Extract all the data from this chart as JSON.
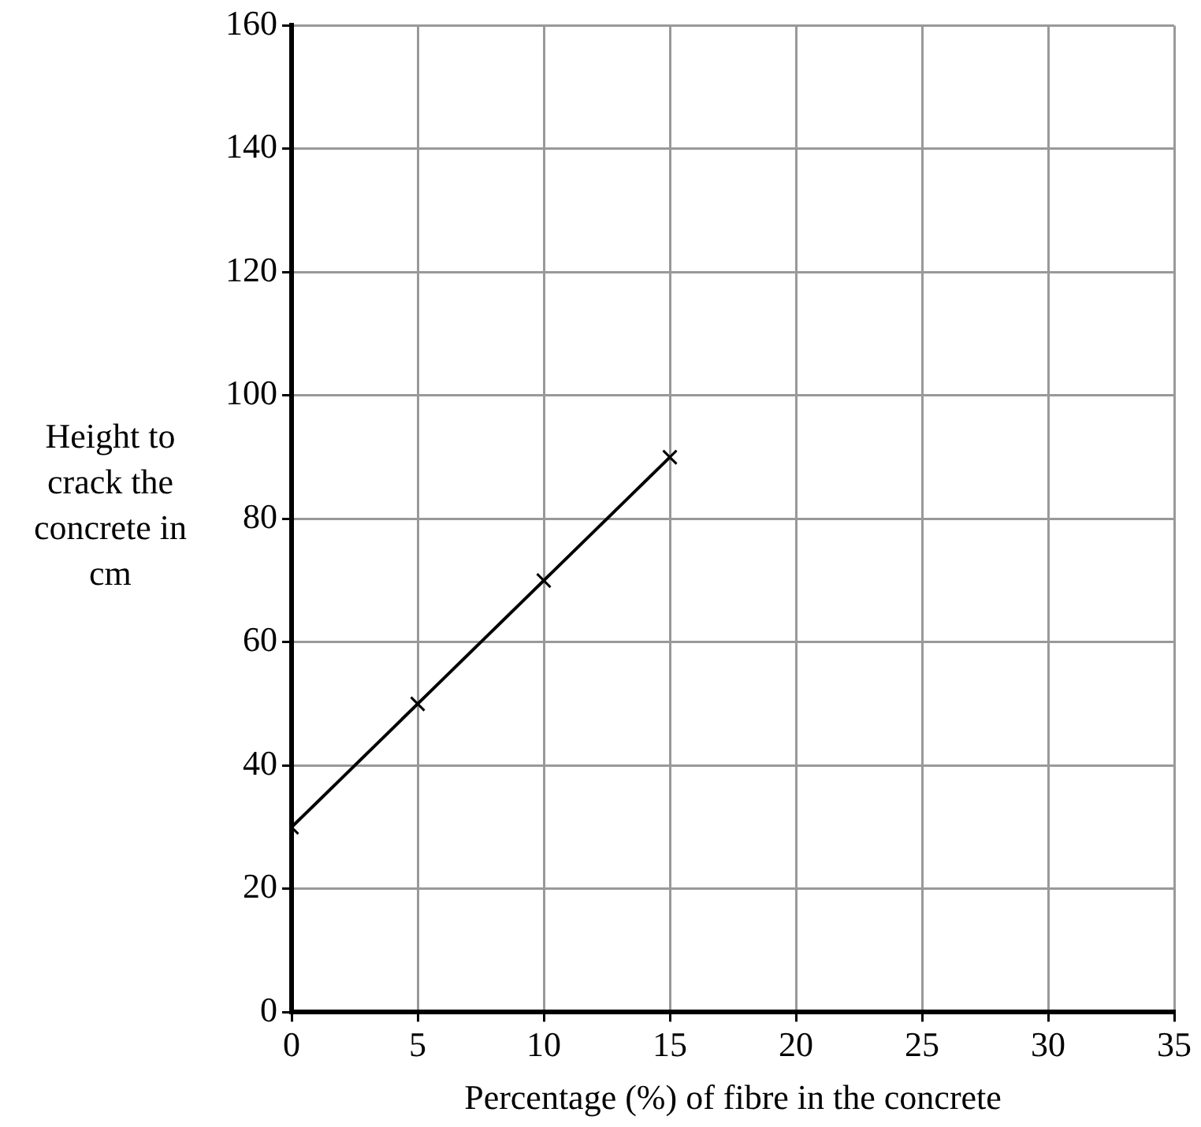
{
  "chart_data": {
    "type": "line",
    "xlabel": "Percentage (%) of fibre in the concrete",
    "ylabel": "Height to crack the concrete in cm",
    "x": [
      0,
      5,
      10,
      15
    ],
    "series": [
      {
        "color": "#000000",
        "values": [
          30,
          50,
          70,
          90
        ]
      }
    ],
    "xlim": [
      0,
      35
    ],
    "xticks": [
      0,
      5,
      10,
      15,
      20,
      25,
      30,
      35
    ],
    "ylim": [
      0,
      160
    ],
    "yticks": [
      0,
      20,
      40,
      60,
      80,
      100,
      120,
      140,
      160
    ],
    "grid": true,
    "legend": false,
    "marker": "cross",
    "line_style": "solid"
  }
}
